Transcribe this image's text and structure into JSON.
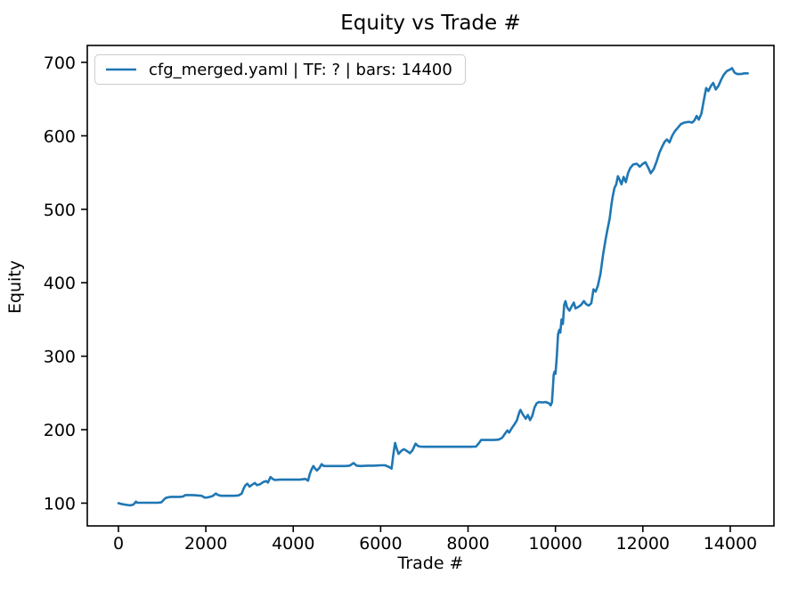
{
  "figure": {
    "title": "Equity vs Trade #",
    "xlabel": "Trade #",
    "ylabel": "Equity",
    "legend_label": "cfg_merged.yaml | TF: ? | bars: 14400"
  },
  "colors": {
    "line": "#1f77b4",
    "axes": "#000000",
    "legend_border": "#cccccc",
    "background": "#ffffff"
  },
  "chart_data": {
    "type": "line",
    "title": "Equity vs Trade #",
    "xlabel": "Trade #",
    "ylabel": "Equity",
    "grid": false,
    "legend_position": "upper left",
    "legend_entries": [
      "cfg_merged.yaml | TF: ? | bars: 14400"
    ],
    "xlim": [
      -713,
      15000
    ],
    "ylim": [
      69,
      723
    ],
    "xticks": [
      0,
      2000,
      4000,
      6000,
      8000,
      10000,
      12000,
      14000
    ],
    "yticks": [
      100,
      200,
      300,
      400,
      500,
      600,
      700
    ],
    "series": [
      {
        "name": "cfg_merged.yaml | TF: ? | bars: 14400",
        "color": "#1f77b4",
        "points": [
          [
            0,
            100
          ],
          [
            60,
            99
          ],
          [
            150,
            98
          ],
          [
            250,
            97
          ],
          [
            320,
            97.5
          ],
          [
            360,
            99
          ],
          [
            400,
            102
          ],
          [
            430,
            100.5
          ],
          [
            500,
            100.5
          ],
          [
            600,
            100.5
          ],
          [
            700,
            100.5
          ],
          [
            800,
            100.5
          ],
          [
            900,
            100.5
          ],
          [
            980,
            101
          ],
          [
            1020,
            103.5
          ],
          [
            1060,
            106
          ],
          [
            1100,
            107.5
          ],
          [
            1200,
            108.5
          ],
          [
            1300,
            108.5
          ],
          [
            1400,
            108.5
          ],
          [
            1480,
            109
          ],
          [
            1530,
            111
          ],
          [
            1600,
            111
          ],
          [
            1700,
            111
          ],
          [
            1800,
            110.5
          ],
          [
            1900,
            110
          ],
          [
            1980,
            107.5
          ],
          [
            2050,
            108
          ],
          [
            2150,
            109.5
          ],
          [
            2230,
            113
          ],
          [
            2280,
            111
          ],
          [
            2350,
            110
          ],
          [
            2450,
            110
          ],
          [
            2550,
            110
          ],
          [
            2650,
            110
          ],
          [
            2750,
            110.5
          ],
          [
            2820,
            113
          ],
          [
            2860,
            119
          ],
          [
            2900,
            124
          ],
          [
            2950,
            126.5
          ],
          [
            3000,
            122.5
          ],
          [
            3060,
            125
          ],
          [
            3120,
            127.5
          ],
          [
            3170,
            124.5
          ],
          [
            3250,
            126
          ],
          [
            3320,
            129
          ],
          [
            3380,
            130
          ],
          [
            3420,
            128
          ],
          [
            3480,
            135.5
          ],
          [
            3530,
            133
          ],
          [
            3580,
            131.5
          ],
          [
            3700,
            132
          ],
          [
            3850,
            132
          ],
          [
            4000,
            132
          ],
          [
            4150,
            132
          ],
          [
            4280,
            133
          ],
          [
            4340,
            130.5
          ],
          [
            4380,
            140
          ],
          [
            4420,
            146
          ],
          [
            4460,
            150.5
          ],
          [
            4500,
            147
          ],
          [
            4540,
            144.5
          ],
          [
            4600,
            148
          ],
          [
            4650,
            153
          ],
          [
            4700,
            150.5
          ],
          [
            4800,
            150.5
          ],
          [
            4900,
            150.5
          ],
          [
            5000,
            150.5
          ],
          [
            5100,
            150.5
          ],
          [
            5200,
            150.5
          ],
          [
            5290,
            151
          ],
          [
            5380,
            154.5
          ],
          [
            5450,
            151
          ],
          [
            5550,
            150.5
          ],
          [
            5700,
            151
          ],
          [
            5850,
            151
          ],
          [
            6000,
            151.5
          ],
          [
            6100,
            151.5
          ],
          [
            6200,
            149
          ],
          [
            6250,
            147
          ],
          [
            6290,
            166
          ],
          [
            6330,
            182
          ],
          [
            6370,
            174
          ],
          [
            6410,
            167
          ],
          [
            6470,
            171
          ],
          [
            6530,
            173.5
          ],
          [
            6600,
            171
          ],
          [
            6670,
            168
          ],
          [
            6730,
            172
          ],
          [
            6800,
            181
          ],
          [
            6850,
            178
          ],
          [
            6900,
            177
          ],
          [
            7000,
            176.7
          ],
          [
            7150,
            176.7
          ],
          [
            7300,
            176.7
          ],
          [
            7450,
            176.7
          ],
          [
            7600,
            176.7
          ],
          [
            7750,
            176.7
          ],
          [
            7900,
            176.7
          ],
          [
            8050,
            176.7
          ],
          [
            8180,
            177
          ],
          [
            8240,
            181
          ],
          [
            8300,
            186
          ],
          [
            8400,
            186
          ],
          [
            8500,
            186
          ],
          [
            8600,
            186
          ],
          [
            8700,
            186.5
          ],
          [
            8780,
            189
          ],
          [
            8840,
            194
          ],
          [
            8900,
            199
          ],
          [
            8940,
            196
          ],
          [
            9000,
            202
          ],
          [
            9060,
            207
          ],
          [
            9120,
            213
          ],
          [
            9170,
            223
          ],
          [
            9200,
            227
          ],
          [
            9250,
            221
          ],
          [
            9320,
            215
          ],
          [
            9370,
            220
          ],
          [
            9420,
            213
          ],
          [
            9470,
            219
          ],
          [
            9520,
            230
          ],
          [
            9570,
            236
          ],
          [
            9620,
            237.5
          ],
          [
            9700,
            237
          ],
          [
            9780,
            237.5
          ],
          [
            9850,
            236
          ],
          [
            9890,
            233
          ],
          [
            9920,
            237
          ],
          [
            9940,
            255
          ],
          [
            9960,
            275
          ],
          [
            9980,
            279
          ],
          [
            10000,
            276
          ],
          [
            10030,
            298
          ],
          [
            10060,
            330
          ],
          [
            10090,
            336
          ],
          [
            10110,
            332
          ],
          [
            10140,
            350
          ],
          [
            10170,
            344
          ],
          [
            10200,
            370
          ],
          [
            10230,
            375
          ],
          [
            10270,
            366
          ],
          [
            10320,
            362
          ],
          [
            10380,
            369
          ],
          [
            10420,
            373
          ],
          [
            10460,
            365
          ],
          [
            10520,
            367
          ],
          [
            10590,
            370
          ],
          [
            10650,
            375
          ],
          [
            10700,
            371
          ],
          [
            10760,
            369
          ],
          [
            10820,
            372
          ],
          [
            10870,
            391
          ],
          [
            10920,
            388
          ],
          [
            10970,
            396
          ],
          [
            11030,
            412
          ],
          [
            11090,
            438
          ],
          [
            11150,
            460
          ],
          [
            11200,
            475
          ],
          [
            11240,
            487
          ],
          [
            11280,
            506
          ],
          [
            11310,
            517
          ],
          [
            11350,
            529
          ],
          [
            11390,
            534
          ],
          [
            11430,
            545
          ],
          [
            11470,
            540
          ],
          [
            11510,
            534
          ],
          [
            11560,
            544
          ],
          [
            11610,
            537
          ],
          [
            11660,
            549
          ],
          [
            11710,
            556
          ],
          [
            11780,
            561
          ],
          [
            11860,
            562
          ],
          [
            11930,
            558
          ],
          [
            12000,
            562
          ],
          [
            12060,
            564
          ],
          [
            12120,
            557
          ],
          [
            12180,
            549
          ],
          [
            12250,
            555
          ],
          [
            12320,
            566
          ],
          [
            12380,
            577
          ],
          [
            12440,
            585
          ],
          [
            12500,
            592
          ],
          [
            12550,
            595
          ],
          [
            12610,
            591
          ],
          [
            12670,
            600
          ],
          [
            12730,
            606
          ],
          [
            12800,
            611
          ],
          [
            12870,
            616
          ],
          [
            12950,
            618
          ],
          [
            13050,
            619
          ],
          [
            13130,
            618
          ],
          [
            13180,
            621
          ],
          [
            13230,
            627
          ],
          [
            13280,
            622
          ],
          [
            13340,
            630
          ],
          [
            13400,
            650
          ],
          [
            13450,
            665
          ],
          [
            13500,
            661
          ],
          [
            13560,
            668
          ],
          [
            13610,
            672
          ],
          [
            13670,
            663
          ],
          [
            13730,
            668
          ],
          [
            13790,
            676
          ],
          [
            13850,
            683
          ],
          [
            13920,
            688
          ],
          [
            13990,
            690
          ],
          [
            14040,
            692
          ],
          [
            14100,
            686
          ],
          [
            14160,
            684
          ],
          [
            14240,
            684
          ],
          [
            14320,
            685
          ],
          [
            14400,
            685
          ]
        ]
      }
    ]
  }
}
